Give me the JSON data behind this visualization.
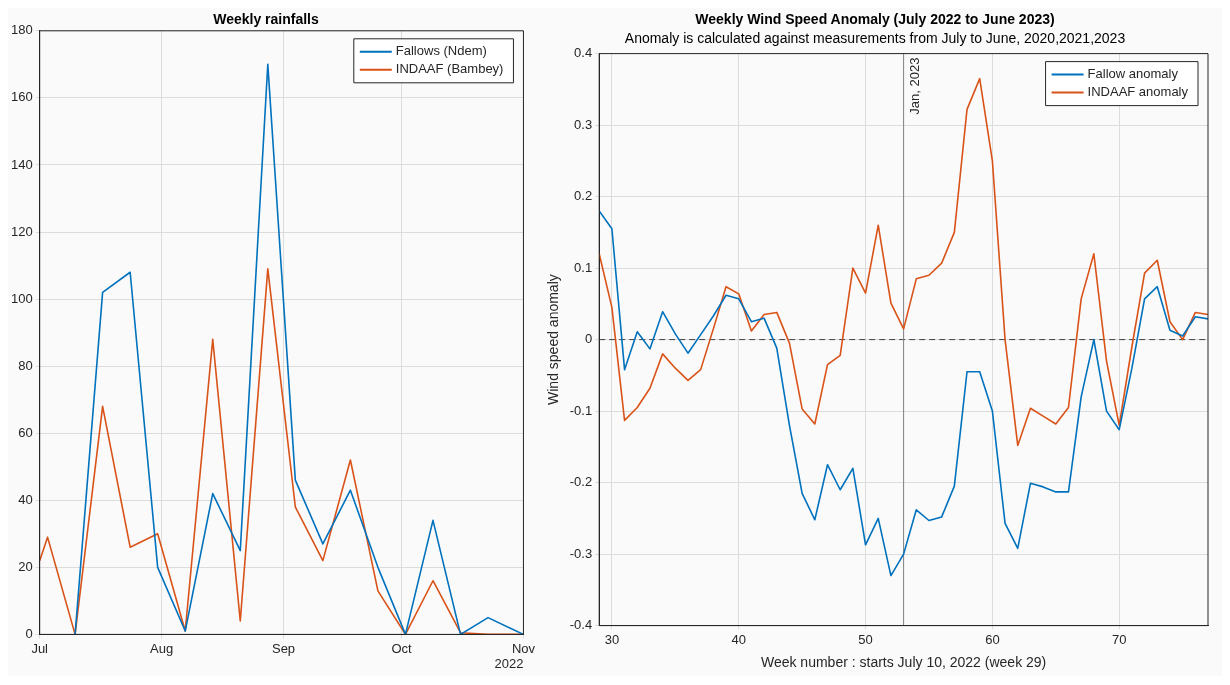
{
  "chart_data": [
    {
      "type": "line",
      "title": "Weekly rainfalls",
      "annotations": [
        "2022"
      ],
      "x": [
        "2022-07-01",
        "2022-07-03",
        "2022-07-10",
        "2022-07-17",
        "2022-07-24",
        "2022-07-31",
        "2022-08-07",
        "2022-08-14",
        "2022-08-21",
        "2022-08-28",
        "2022-09-04",
        "2022-09-11",
        "2022-09-18",
        "2022-09-25",
        "2022-10-02",
        "2022-10-09",
        "2022-10-16",
        "2022-10-23",
        "2022-11-01"
      ],
      "series": [
        {
          "name": "Fallows (Ndem)",
          "color": "#0072bd",
          "values": [
            null,
            null,
            0,
            102,
            108,
            20,
            1,
            42,
            25,
            170,
            46,
            27,
            43,
            20,
            0,
            34,
            0,
            5,
            0
          ]
        },
        {
          "name": "INDAAF (Bambey)",
          "color": "#d95319",
          "values": [
            22,
            29,
            0,
            68,
            26,
            30,
            1,
            88,
            4,
            109,
            38,
            22,
            52,
            13,
            0,
            16,
            0.5,
            0,
            0
          ]
        }
      ],
      "xlim": [
        "2022-07-01",
        "2022-11-01"
      ],
      "xticks": [
        {
          "value": "2022-07-01",
          "label": "Jul"
        },
        {
          "value": "2022-08-01",
          "label": "Aug"
        },
        {
          "value": "2022-09-01",
          "label": "Sep"
        },
        {
          "value": "2022-10-01",
          "label": "Oct"
        },
        {
          "value": "2022-11-01",
          "label": "Nov"
        }
      ],
      "ylim": [
        0,
        180
      ],
      "yticks": [
        0,
        20,
        40,
        60,
        80,
        100,
        120,
        140,
        160,
        180
      ],
      "grid": true,
      "legend": "top right"
    },
    {
      "type": "line",
      "title": "Weekly Wind Speed Anomaly (July 2022 to June 2023)",
      "subtitle": "Anomaly is calculated against measurements from July to June, 2020,2021,2023",
      "xlabel": "Week number : starts July 10, 2022 (week 29)",
      "ylabel": "Wind speed anomaly",
      "x": [
        29,
        30,
        31,
        32,
        33,
        34,
        35,
        36,
        37,
        38,
        39,
        40,
        41,
        42,
        43,
        44,
        45,
        46,
        47,
        48,
        49,
        50,
        51,
        52,
        53,
        54,
        55,
        56,
        57,
        58,
        59,
        60,
        61,
        62,
        63,
        64,
        65,
        66,
        67,
        68,
        69,
        70,
        71,
        72,
        73,
        74,
        75,
        76,
        77
      ],
      "series": [
        {
          "name": "Fallow anomaly",
          "color": "#0072bd",
          "values": [
            0.18,
            0.155,
            -0.042,
            0.011,
            -0.013,
            0.039,
            0.008,
            -0.019,
            0.007,
            0.033,
            0.062,
            0.057,
            0.025,
            0.03,
            -0.012,
            -0.12,
            -0.215,
            -0.252,
            -0.175,
            -0.21,
            -0.18,
            -0.287,
            -0.25,
            -0.33,
            -0.3,
            -0.238,
            -0.253,
            -0.248,
            -0.205,
            -0.045,
            -0.045,
            -0.1,
            -0.257,
            -0.292,
            -0.201,
            -0.206,
            -0.213,
            -0.213,
            -0.08,
            0.0,
            -0.1,
            -0.126,
            -0.04,
            0.057,
            0.074,
            0.013,
            0.005,
            0.032,
            0.029
          ]
        },
        {
          "name": "INDAAF anomaly",
          "color": "#d95319",
          "values": [
            0.12,
            0.045,
            -0.113,
            -0.095,
            -0.068,
            -0.02,
            -0.04,
            -0.057,
            -0.042,
            0.015,
            0.074,
            0.064,
            0.012,
            0.035,
            0.038,
            -0.005,
            -0.097,
            -0.118,
            -0.035,
            -0.022,
            0.1,
            0.065,
            0.16,
            0.051,
            0.015,
            0.085,
            0.09,
            0.107,
            0.15,
            0.322,
            0.365,
            0.25,
            0.0,
            -0.148,
            -0.096,
            -0.107,
            -0.118,
            -0.095,
            0.057,
            0.12,
            -0.03,
            -0.12,
            -0.01,
            0.093,
            0.111,
            0.025,
            0.0,
            0.038,
            0.035
          ]
        }
      ],
      "xlim": [
        29,
        77
      ],
      "xticks": [
        30,
        40,
        50,
        60,
        70
      ],
      "ylim": [
        -0.4,
        0.4
      ],
      "yticks": [
        -0.4,
        -0.3,
        -0.2,
        -0.1,
        0,
        0.1,
        0.2,
        0.3,
        0.4
      ],
      "grid": true,
      "legend": "top right",
      "ref_lines": [
        {
          "axis": "y",
          "value": 0,
          "color": "#404040",
          "line_style": "dashed"
        },
        {
          "axis": "x",
          "value": 53,
          "label": "Jan, 2023",
          "color": "#808080",
          "line_style": "solid"
        }
      ]
    }
  ]
}
